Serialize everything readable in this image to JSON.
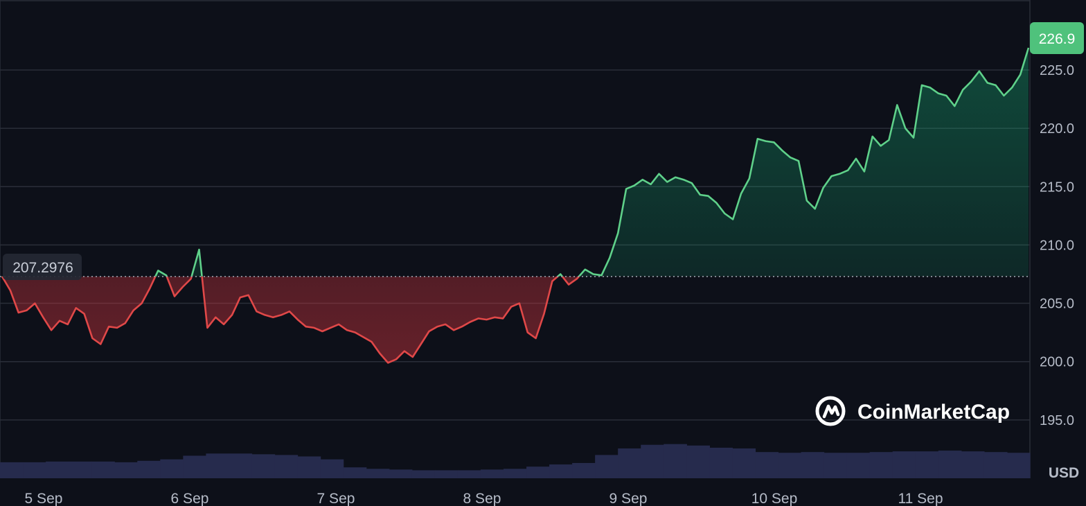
{
  "chart_data": {
    "type": "area",
    "unit": "USD",
    "x_ticks": [
      "5 Sep",
      "6 Sep",
      "7 Sep",
      "8 Sep",
      "9 Sep",
      "10 Sep",
      "11 Sep"
    ],
    "y_ticks": [
      "195.0",
      "200.0",
      "205.0",
      "210.0",
      "215.0",
      "220.0",
      "225.0"
    ],
    "ylim": [
      190,
      231
    ],
    "grid": true,
    "base_value": 207.2976,
    "base_label": "207.2976",
    "last_value": 226.9,
    "last_label": "226.9",
    "colors": {
      "up": "#16c784",
      "up_line": "#5fd18a",
      "down": "#ea3943",
      "down_line": "#e04848",
      "background": "#0d1019",
      "grid": "#2a2e39",
      "volume": "#262b4d"
    },
    "series": [
      {
        "values": [
          207.3,
          206.1,
          204.2,
          204.4,
          205.0,
          203.8,
          202.7,
          203.5,
          203.2,
          204.6,
          204.1,
          202.0,
          201.5,
          203.0,
          202.9,
          203.3,
          204.4,
          205.0,
          206.3,
          207.8,
          207.4,
          205.6,
          206.4,
          207.1,
          209.6,
          202.9,
          203.8,
          203.2,
          204.0,
          205.5,
          205.7,
          204.3,
          204.0,
          203.8,
          204.0,
          204.3,
          203.6,
          203.0,
          202.9,
          202.6,
          202.9,
          203.2,
          202.7,
          202.5,
          202.1,
          201.7,
          200.7,
          199.9,
          200.2,
          200.9,
          200.4,
          201.5,
          202.6,
          203.0,
          203.2,
          202.7,
          203.0,
          203.4,
          203.7,
          203.6,
          203.8,
          203.7,
          204.7,
          205.0,
          202.5,
          202.0,
          204.1,
          206.9,
          207.5,
          206.6,
          207.1,
          207.9,
          207.5,
          207.4,
          208.9,
          211.0,
          214.8,
          215.1,
          215.6,
          215.2,
          216.1,
          215.4,
          215.8,
          215.6,
          215.3,
          214.3,
          214.2,
          213.6,
          212.7,
          212.2,
          214.4,
          215.7,
          219.1,
          218.9,
          218.8,
          218.1,
          217.5,
          217.2,
          213.8,
          213.1,
          214.9,
          215.9,
          216.1,
          216.4,
          217.4,
          216.3,
          219.3,
          218.5,
          219.0,
          222.0,
          220.0,
          219.2,
          223.7,
          223.5,
          223.0,
          222.8,
          221.9,
          223.3,
          224.0,
          224.9,
          223.9,
          223.7,
          222.8,
          223.5,
          224.6,
          226.9
        ]
      }
    ],
    "volume": [
      0.22,
      0.22,
      0.23,
      0.23,
      0.23,
      0.22,
      0.24,
      0.26,
      0.31,
      0.34,
      0.34,
      0.33,
      0.32,
      0.3,
      0.26,
      0.15,
      0.13,
      0.12,
      0.11,
      0.11,
      0.11,
      0.12,
      0.13,
      0.16,
      0.19,
      0.21,
      0.32,
      0.41,
      0.46,
      0.47,
      0.45,
      0.42,
      0.41,
      0.36,
      0.35,
      0.36,
      0.35,
      0.35,
      0.36,
      0.37,
      0.37,
      0.38,
      0.37,
      0.36,
      0.35
    ]
  },
  "brand": {
    "name": "CoinMarketCap",
    "icon": "coinmarketcap-logo-icon"
  }
}
